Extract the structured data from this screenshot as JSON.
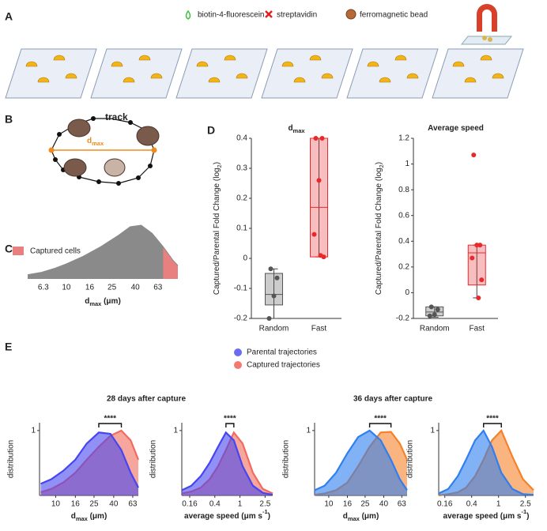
{
  "panel_labels": [
    "A",
    "B",
    "C",
    "D",
    "E"
  ],
  "panel_a": {
    "legend": [
      "biotin-4-fluorescein",
      "streptavidin",
      "ferromagnetic bead"
    ]
  },
  "panel_b": {
    "track_label": "track",
    "distance_label": [
      {
        "text": "d"
      },
      {
        "text": "max",
        "sub": true
      }
    ]
  },
  "panel_e": {
    "legend": [
      {
        "label": "Parental trajectories",
        "color": "#6b6bf2"
      },
      {
        "label": "Captured trajectories",
        "color": "#f27a72"
      }
    ],
    "group_titles": [
      "28 days after capture",
      "36 days after capture"
    ]
  },
  "chart_data": [
    {
      "type": "area",
      "log_x": true,
      "legend_label": "Captured cells",
      "color": "#8a8a8a",
      "highlight_color": "#e88080",
      "highlight_from": 70,
      "x": [
        4.6,
        6,
        8,
        10,
        14,
        20,
        28,
        36,
        45,
        56,
        70,
        85,
        94
      ],
      "values": [
        0.08,
        0.12,
        0.2,
        0.28,
        0.42,
        0.6,
        0.8,
        0.97,
        1.0,
        0.85,
        0.6,
        0.35,
        0.25
      ],
      "xlim": [
        4.6,
        94
      ],
      "ylim": [
        0,
        1
      ],
      "xticks": [
        6.3,
        10,
        16,
        25,
        40,
        63
      ],
      "xlabel": [
        {
          "text": "d"
        },
        {
          "text": "max",
          "sub": true
        },
        {
          "text": " (μm)"
        }
      ]
    },
    {
      "type": "box",
      "title": [
        {
          "text": "d"
        },
        {
          "text": "max",
          "sub": true
        }
      ],
      "ylabel": [
        {
          "text": "Captured/Parental Fold Change (log"
        },
        {
          "text": "2",
          "sub": true
        },
        {
          "text": ")"
        }
      ],
      "categories": [
        "Random",
        "Fast"
      ],
      "colors": [
        "#555555",
        "#e8282b"
      ],
      "points": [
        [
          -0.035,
          -0.065,
          -0.125,
          -0.2
        ],
        [
          0.4,
          0.4,
          0.26,
          0.08,
          0.005,
          0.01
        ]
      ],
      "boxes": [
        [
          -0.2,
          -0.155,
          -0.12,
          -0.05,
          -0.035
        ],
        [
          0.005,
          0.005,
          0.17,
          0.4,
          0.4
        ]
      ],
      "ylim": [
        -0.2,
        0.4
      ],
      "yticks": [
        -0.2,
        -0.1,
        0,
        0.1,
        0.2,
        0.3,
        0.4
      ]
    },
    {
      "type": "box",
      "title": [
        {
          "text": "Average speed"
        }
      ],
      "ylabel": [
        {
          "text": "Captured/Parental Fold Change (log"
        },
        {
          "text": "2",
          "sub": true
        },
        {
          "text": ")"
        }
      ],
      "categories": [
        "Random",
        "Fast"
      ],
      "colors": [
        "#555555",
        "#e8282b"
      ],
      "points": [
        [
          -0.11,
          -0.13,
          -0.17,
          -0.18
        ],
        [
          1.07,
          0.37,
          0.37,
          0.27,
          0.1,
          -0.04
        ]
      ],
      "boxes": [
        [
          -0.19,
          -0.18,
          -0.15,
          -0.11,
          -0.11
        ],
        [
          -0.04,
          0.06,
          0.31,
          0.37,
          0.37
        ]
      ],
      "ylim": [
        -0.2,
        1.2
      ],
      "yticks": [
        -0.2,
        0,
        0.2,
        0.4,
        0.6,
        0.8,
        1,
        1.2
      ]
    },
    {
      "type": "density",
      "log_x": true,
      "ylabel": "distribution",
      "annotation": "****",
      "x": [
        7,
        9,
        12,
        16,
        21,
        28,
        37,
        48,
        60,
        72
      ],
      "series": [
        {
          "color": "#f26a5e",
          "values": [
            0.05,
            0.1,
            0.2,
            0.35,
            0.55,
            0.75,
            0.92,
            1.0,
            0.85,
            0.55
          ]
        },
        {
          "color": "#4646f0",
          "values": [
            0.18,
            0.25,
            0.38,
            0.55,
            0.8,
            0.97,
            0.95,
            0.7,
            0.35,
            0.12
          ]
        }
      ],
      "xlim": [
        6.8,
        72
      ],
      "ylim": [
        0,
        1.12
      ],
      "yticks": [
        1
      ],
      "xticks": [
        10,
        16,
        25,
        40,
        63
      ],
      "xlabel": [
        {
          "text": "d"
        },
        {
          "text": "max",
          "sub": true
        },
        {
          "text": " (μm)"
        }
      ]
    },
    {
      "type": "density",
      "log_x": true,
      "ylabel": "distribution",
      "annotation": "****",
      "x": [
        0.12,
        0.17,
        0.24,
        0.33,
        0.45,
        0.6,
        0.8,
        1.1,
        1.6,
        2.3,
        3.3
      ],
      "series": [
        {
          "color": "#f26a5e",
          "values": [
            0.03,
            0.06,
            0.12,
            0.25,
            0.45,
            0.7,
            0.97,
            0.8,
            0.35,
            0.1,
            0.03
          ]
        },
        {
          "color": "#4646f0",
          "values": [
            0.08,
            0.15,
            0.3,
            0.5,
            0.75,
            0.97,
            0.85,
            0.45,
            0.15,
            0.04,
            0.01
          ]
        }
      ],
      "xlim": [
        0.12,
        3.3
      ],
      "ylim": [
        0,
        1.12
      ],
      "yticks": [
        1
      ],
      "xticks": [
        0.16,
        0.4,
        1,
        2.5
      ],
      "xlabel": [
        {
          "text": "average speed (μm s"
        },
        {
          "text": "-1",
          "sup": true
        },
        {
          "text": ")"
        }
      ]
    },
    {
      "type": "density",
      "log_x": true,
      "ylabel": "distribution",
      "annotation": "****",
      "x": [
        7,
        9,
        12,
        16,
        21,
        28,
        37,
        48,
        60,
        72
      ],
      "series": [
        {
          "color": "#f5822a",
          "values": [
            0.01,
            0.03,
            0.08,
            0.2,
            0.45,
            0.75,
            0.97,
            0.98,
            0.8,
            0.55
          ]
        },
        {
          "color": "#2f7ff0",
          "values": [
            0.08,
            0.15,
            0.35,
            0.65,
            0.9,
            1.0,
            0.85,
            0.55,
            0.25,
            0.08
          ]
        }
      ],
      "xlim": [
        7,
        72
      ],
      "ylim": [
        0,
        1.12
      ],
      "yticks": [
        1
      ],
      "xticks": [
        10,
        16,
        25,
        40,
        63
      ],
      "xlabel": [
        {
          "text": "d"
        },
        {
          "text": "max",
          "sub": true
        },
        {
          "text": " (μm)"
        }
      ]
    },
    {
      "type": "density",
      "log_x": true,
      "ylabel": "distribution",
      "annotation": "****",
      "x": [
        0.13,
        0.18,
        0.25,
        0.33,
        0.45,
        0.6,
        0.8,
        1.1,
        1.6,
        2.3,
        3.3
      ],
      "series": [
        {
          "color": "#f5822a",
          "values": [
            0.0,
            0.02,
            0.05,
            0.12,
            0.3,
            0.55,
            0.85,
            1.0,
            0.6,
            0.25,
            0.08
          ]
        },
        {
          "color": "#2f7ff0",
          "values": [
            0.03,
            0.1,
            0.3,
            0.55,
            0.85,
            1.0,
            0.75,
            0.35,
            0.1,
            0.02,
            0.01
          ]
        }
      ],
      "xlim": [
        0.13,
        3.3
      ],
      "ylim": [
        0,
        1.12
      ],
      "yticks": [
        1
      ],
      "xticks": [
        0.16,
        0.4,
        1,
        2.5
      ],
      "xlabel": [
        {
          "text": "average speed (μm s"
        },
        {
          "text": "-1",
          "sup": true
        },
        {
          "text": ")"
        }
      ]
    }
  ]
}
